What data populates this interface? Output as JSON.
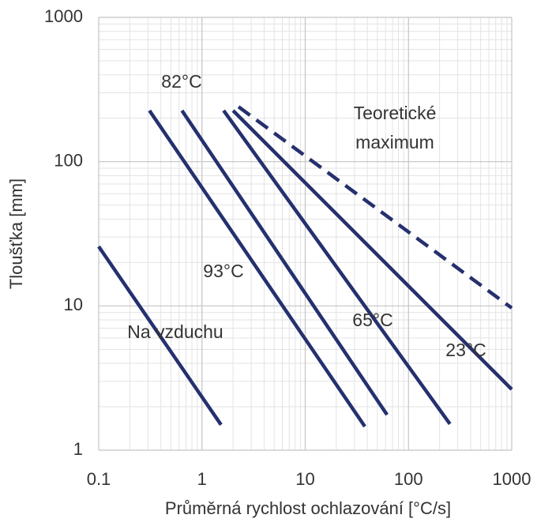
{
  "chart_data": {
    "type": "line",
    "log_x": true,
    "log_y": true,
    "grid": true,
    "x_label": "Průměrná rychlost ochlazování [°C/s]",
    "y_label": "Tloušťka [mm]",
    "xlim": [
      0.1,
      1000
    ],
    "xticks": [
      0.1,
      1,
      10,
      100,
      1000
    ],
    "ylim": [
      1,
      1000
    ],
    "yticks": [
      1,
      10,
      100,
      1000
    ],
    "series": [
      {
        "color": "#25306e",
        "dashed": false,
        "x": [
          0.1,
          1.53
        ],
        "values": [
          25.8,
          1.5
        ]
      },
      {
        "color": "#25306e",
        "dashed": false,
        "x": [
          0.31,
          37.8
        ],
        "values": [
          226,
          1.46
        ]
      },
      {
        "color": "#25306e",
        "dashed": false,
        "x": [
          0.64,
          62
        ],
        "values": [
          226,
          1.76
        ]
      },
      {
        "color": "#25306e",
        "dashed": false,
        "x": [
          1.62,
          252
        ],
        "values": [
          226,
          1.52
        ]
      },
      {
        "color": "#25306e",
        "dashed": false,
        "x": [
          2.0,
          1000
        ],
        "values": [
          226,
          2.64
        ]
      },
      {
        "color": "#25306e",
        "dashed": true,
        "x": [
          2.26,
          1000
        ],
        "values": [
          240,
          9.67
        ]
      }
    ],
    "annotations": [
      "82°C",
      "93°C",
      "65°C",
      "23°C",
      "Na vzduchu",
      "Teoretické",
      "maximum"
    ]
  }
}
